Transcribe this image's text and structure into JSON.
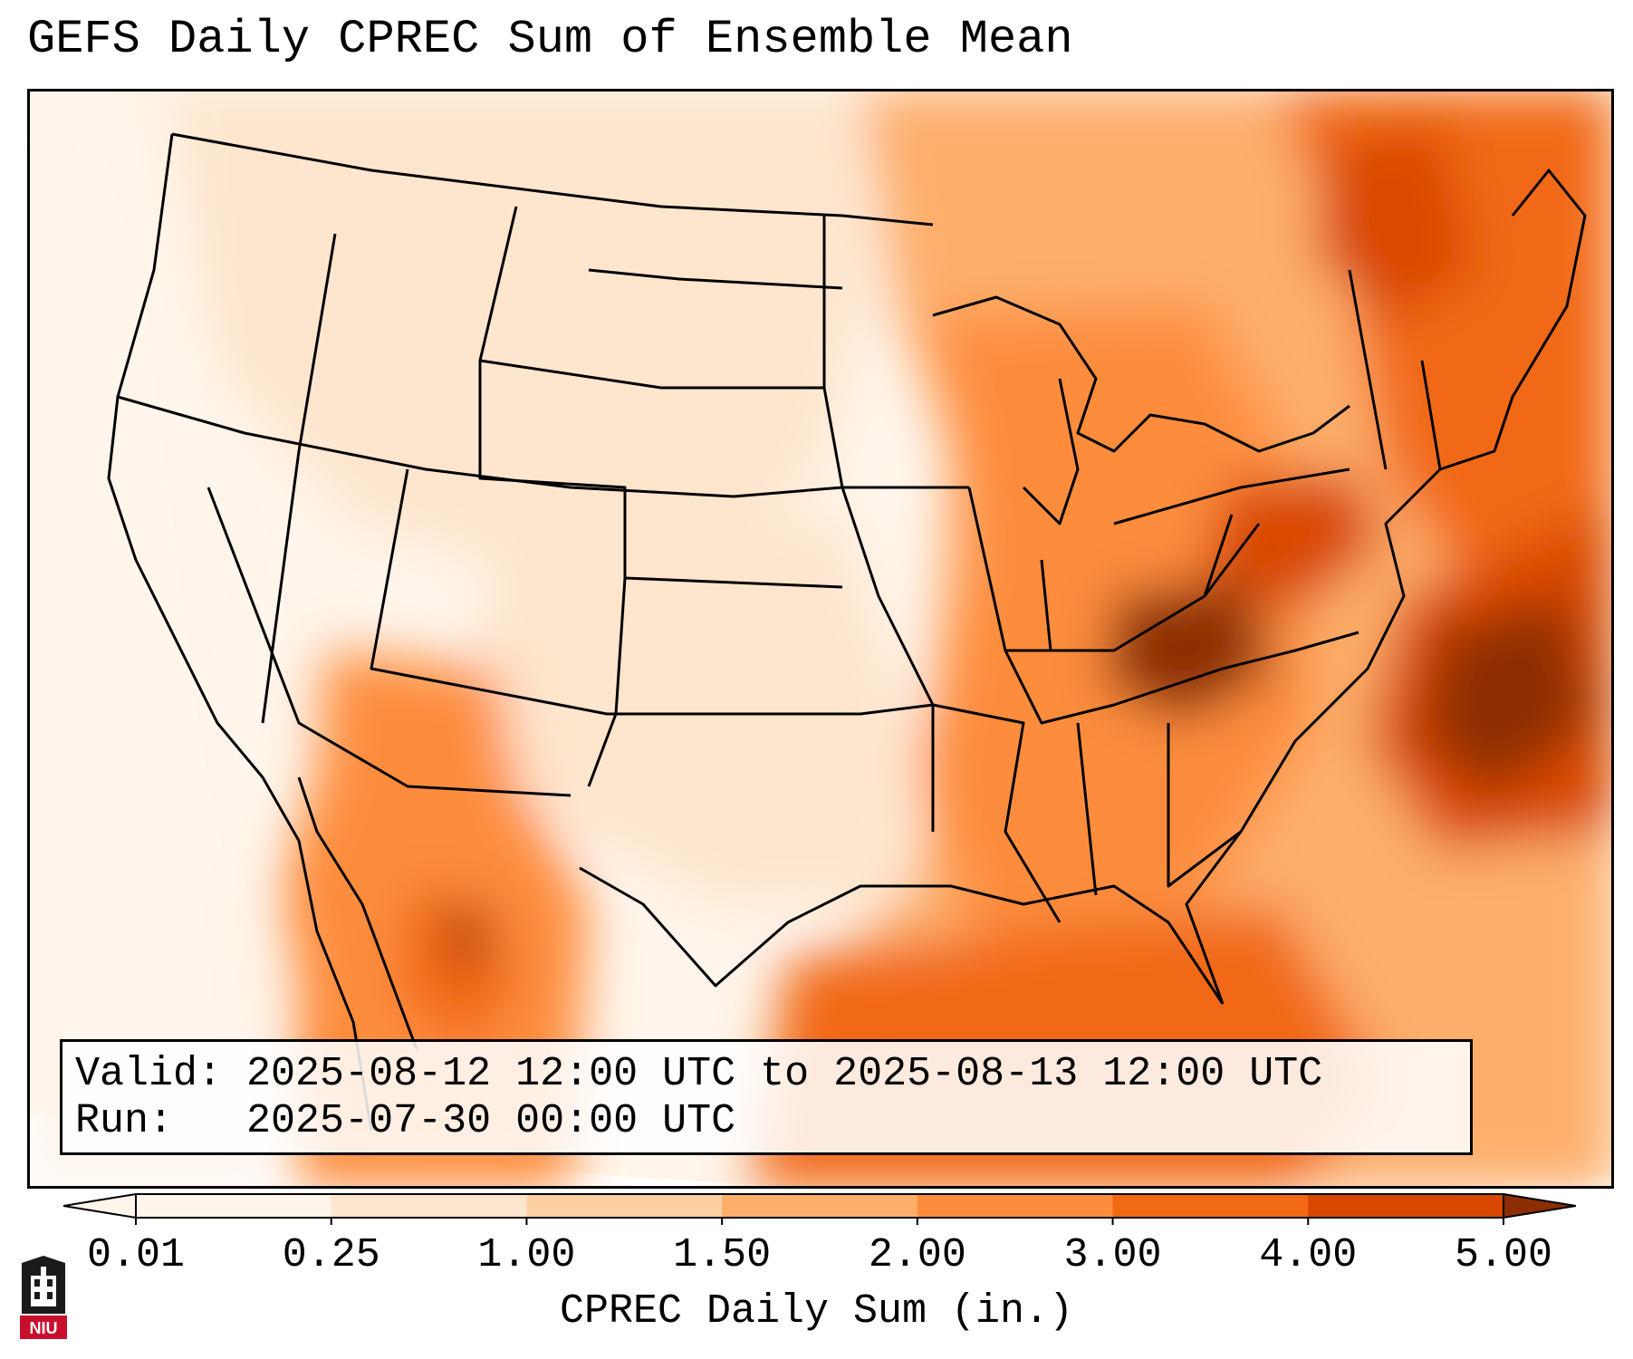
{
  "title": "GEFS Daily CPREC Sum of Ensemble Mean",
  "info": {
    "valid_label": "Valid:",
    "valid_value": "2025-08-12 12:00 UTC to 2025-08-13 12:00 UTC",
    "run_label": "Run:",
    "run_value": "2025-07-30 00:00 UTC"
  },
  "colorbar": {
    "label": "CPREC Daily Sum (in.)",
    "ticks": [
      "0.01",
      "0.25",
      "1.00",
      "1.50",
      "2.00",
      "3.00",
      "4.00",
      "5.00"
    ],
    "colors": [
      "#fff5eb",
      "#fee6ce",
      "#fdd0a2",
      "#fdae6b",
      "#fd8d3c",
      "#f16913",
      "#d94801",
      "#8c2d04"
    ]
  },
  "logo": {
    "text": "NIU",
    "colors": {
      "red": "#c8102e",
      "black": "#1a1a1a"
    }
  },
  "map": {
    "region": "CONUS",
    "basemap_lines": "state-borders-and-coastlines"
  }
}
